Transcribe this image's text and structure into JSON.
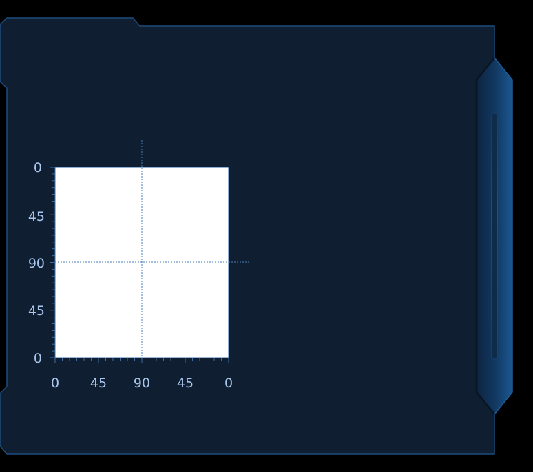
{
  "panel": {
    "background": "#0f1e30",
    "border_color": "#1e4c7e",
    "accent_color": "#1a5a9e"
  },
  "plot": {
    "fill": "#ffffff",
    "y_axis_ticks": [
      "0",
      "45",
      "90",
      "45",
      "0"
    ],
    "x_axis_ticks": [
      "0",
      "45",
      "90",
      "45",
      "0"
    ],
    "crosshair": {
      "x_value": "90",
      "y_value": "90"
    }
  },
  "scrollbar": {
    "track_color": "#134067"
  }
}
